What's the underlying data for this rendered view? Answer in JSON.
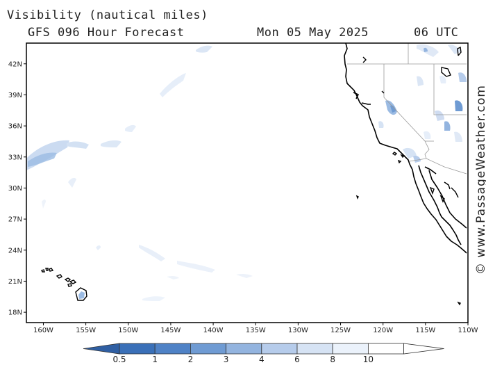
{
  "header": {
    "title": "Visibility (nautical miles)",
    "subtitle": "GFS 096 Hour Forecast",
    "date": "Mon 05 May 2025",
    "time": "06 UTC"
  },
  "credit": "© www.PassageWeather.com",
  "map": {
    "lon_range": [
      -162,
      -110
    ],
    "lat_range": [
      17,
      44
    ],
    "lon_ticks": [
      {
        "value": -160,
        "label": "160W"
      },
      {
        "value": -155,
        "label": "155W"
      },
      {
        "value": -150,
        "label": "150W"
      },
      {
        "value": -145,
        "label": "145W"
      },
      {
        "value": -140,
        "label": "140W"
      },
      {
        "value": -135,
        "label": "135W"
      },
      {
        "value": -130,
        "label": "130W"
      },
      {
        "value": -125,
        "label": "125W"
      },
      {
        "value": -120,
        "label": "120W"
      },
      {
        "value": -115,
        "label": "115W"
      },
      {
        "value": -110,
        "label": "110W"
      }
    ],
    "lat_ticks": [
      {
        "value": 42,
        "label": "42N"
      },
      {
        "value": 39,
        "label": "39N"
      },
      {
        "value": 36,
        "label": "36N"
      },
      {
        "value": 33,
        "label": "33N"
      },
      {
        "value": 30,
        "label": "30N"
      },
      {
        "value": 27,
        "label": "27N"
      },
      {
        "value": 24,
        "label": "24N"
      },
      {
        "value": 21,
        "label": "21N"
      },
      {
        "value": 18,
        "label": "18N"
      }
    ]
  },
  "colorbar": {
    "labels": [
      "0.5",
      "1",
      "2",
      "3",
      "4",
      "6",
      "8",
      "10"
    ],
    "colors": [
      "#3a70b8",
      "#4f82c6",
      "#6f9bd3",
      "#93b4df",
      "#b6cceb",
      "#d6e3f4",
      "#ebf2fb",
      "#ffffff"
    ]
  },
  "colors": {
    "land": "#ffffff",
    "coast": "#000000",
    "border": "#999999",
    "frame": "#000000"
  }
}
